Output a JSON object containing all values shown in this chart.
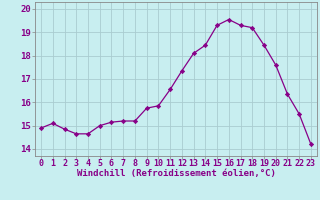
{
  "hours": [
    0,
    1,
    2,
    3,
    4,
    5,
    6,
    7,
    8,
    9,
    10,
    11,
    12,
    13,
    14,
    15,
    16,
    17,
    18,
    19,
    20,
    21,
    22,
    23
  ],
  "values": [
    14.9,
    15.1,
    14.85,
    14.65,
    14.65,
    15.0,
    15.15,
    15.2,
    15.2,
    15.75,
    15.85,
    16.55,
    17.35,
    18.1,
    18.45,
    19.3,
    19.55,
    19.3,
    19.2,
    18.45,
    17.6,
    16.35,
    15.5,
    14.2
  ],
  "line_color": "#880088",
  "marker": "D",
  "marker_size": 2.2,
  "bg_color": "#c8eef0",
  "grid_color": "#aaccd0",
  "xlabel": "Windchill (Refroidissement éolien,°C)",
  "ylabel_ticks": [
    14,
    15,
    16,
    17,
    18,
    19,
    20
  ],
  "xlim": [
    -0.5,
    23.5
  ],
  "ylim": [
    13.7,
    20.3
  ],
  "tick_color": "#880088",
  "font_size": 6
}
